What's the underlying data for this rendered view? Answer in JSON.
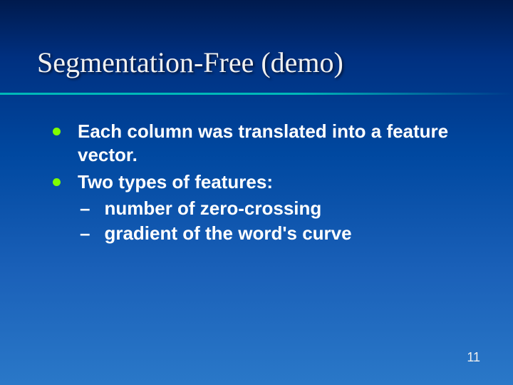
{
  "slide": {
    "title": "Segmentation-Free (demo)",
    "underline_color": "#00b8b8",
    "bullet_color": "#7fff00",
    "background_gradient": [
      "#001a4d",
      "#003080",
      "#0048a0",
      "#1a60b8",
      "#2a78c8"
    ],
    "title_font": "Times New Roman",
    "title_fontsize": 40,
    "body_font": "Arial",
    "body_fontsize": 26,
    "body_fontweight": "bold",
    "text_color": "#ffffff",
    "bullets": {
      "b1": "Each column was translated into a feature vector.",
      "b2": "Two types of features:",
      "s1": "number of zero-crossing",
      "s2": "gradient of the word's curve"
    },
    "dash": "–",
    "page_number": "11"
  }
}
